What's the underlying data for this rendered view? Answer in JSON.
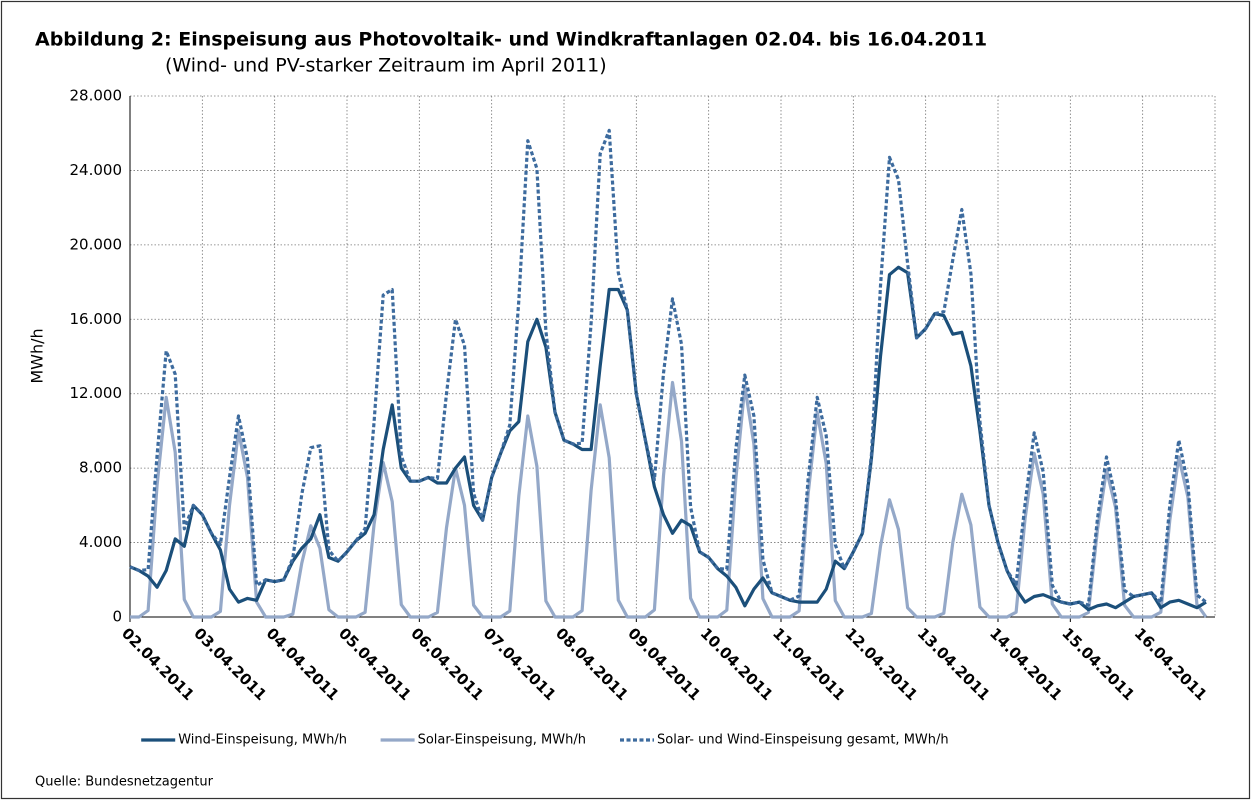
{
  "chart_data": {
    "type": "line",
    "title": "Abbildung 2: Einspeisung aus Photovoltaik- und Windkraftanlagen 02.04. bis 16.04.2011",
    "subtitle": "(Wind- und PV-starker Zeitraum im April 2011)",
    "y_label": "MWh/h",
    "source": "Quelle: Bundesnetzagentur",
    "grid": true,
    "legend": "bottom",
    "xlim": [
      0,
      15
    ],
    "ylim": [
      0,
      28000
    ],
    "yticks": [
      0,
      {
        "value": 4000,
        "label": "4.000"
      },
      {
        "value": 8000,
        "label": "8.000"
      },
      {
        "value": 12000,
        "label": "12.000"
      },
      {
        "value": 16000,
        "label": "16.000"
      },
      {
        "value": 20000,
        "label": "20.000"
      },
      {
        "value": 24000,
        "label": "24.000"
      },
      {
        "value": 28000,
        "label": "28.000"
      }
    ],
    "xticks": [
      {
        "value": 0,
        "label": "02.04.2011"
      },
      {
        "value": 1,
        "label": "03.04.2011"
      },
      {
        "value": 2,
        "label": "04.04.2011"
      },
      {
        "value": 3,
        "label": "05.04.2011"
      },
      {
        "value": 4,
        "label": "06.04.2011"
      },
      {
        "value": 5,
        "label": "07.04.2011"
      },
      {
        "value": 6,
        "label": "08.04.2011"
      },
      {
        "value": 7,
        "label": "09.04.2011"
      },
      {
        "value": 8,
        "label": "10.04.2011"
      },
      {
        "value": 9,
        "label": "11.04.2011"
      },
      {
        "value": 10,
        "label": "12.04.2011"
      },
      {
        "value": 11,
        "label": "13.04.2011"
      },
      {
        "value": 12,
        "label": "14.04.2011"
      },
      {
        "value": 13,
        "label": "15.04.2011"
      },
      {
        "value": 14,
        "label": "16.04.2011"
      }
    ],
    "x": [
      0,
      0.125,
      0.25,
      0.375,
      0.5,
      0.625,
      0.75,
      0.875,
      1,
      1.125,
      1.25,
      1.375,
      1.5,
      1.625,
      1.75,
      1.875,
      2,
      2.125,
      2.25,
      2.375,
      2.5,
      2.625,
      2.75,
      2.875,
      3,
      3.125,
      3.25,
      3.375,
      3.5,
      3.625,
      3.75,
      3.875,
      4,
      4.125,
      4.25,
      4.375,
      4.5,
      4.625,
      4.75,
      4.875,
      5,
      5.125,
      5.25,
      5.375,
      5.5,
      5.625,
      5.75,
      5.875,
      6,
      6.125,
      6.25,
      6.375,
      6.5,
      6.625,
      6.75,
      6.875,
      7,
      7.125,
      7.25,
      7.375,
      7.5,
      7.625,
      7.75,
      7.875,
      8,
      8.125,
      8.25,
      8.375,
      8.5,
      8.625,
      8.75,
      8.875,
      9,
      9.125,
      9.25,
      9.375,
      9.5,
      9.625,
      9.75,
      9.875,
      10,
      10.125,
      10.25,
      10.375,
      10.5,
      10.625,
      10.75,
      10.875,
      11,
      11.125,
      11.25,
      11.375,
      11.5,
      11.625,
      11.75,
      11.875,
      12,
      12.125,
      12.25,
      12.375,
      12.5,
      12.625,
      12.75,
      12.875,
      13,
      13.125,
      13.25,
      13.375,
      13.5,
      13.625,
      13.75,
      13.875,
      14,
      14.125,
      14.25,
      14.375,
      14.5,
      14.625,
      14.75,
      14.875
    ],
    "series": [
      {
        "name": "Wind-Einspeisung, MWh/h",
        "color": "#1b4f7a",
        "style": "solid",
        "values": [
          2700,
          2500,
          2200,
          1600,
          2500,
          4200,
          3800,
          6000,
          5500,
          4500,
          3600,
          1500,
          800,
          1000,
          900,
          2000,
          1900,
          2000,
          3000,
          3700,
          4200,
          5500,
          3200,
          3000,
          3500,
          4100,
          4500,
          5500,
          9000,
          11400,
          8000,
          7300,
          7300,
          7500,
          7200,
          7200,
          8000,
          8600,
          6000,
          5200,
          7500,
          8800,
          10000,
          10500,
          14800,
          16000,
          14500,
          11000,
          9500,
          9300,
          9000,
          9000,
          13500,
          17600,
          17600,
          16500,
          12000,
          9500,
          7000,
          5500,
          4500,
          5200,
          4900,
          3500,
          3200,
          2600,
          2200,
          1600,
          600,
          1500,
          2100,
          1300,
          1100,
          900,
          800,
          800,
          800,
          1500,
          3000,
          2600,
          3500,
          4500,
          8500,
          14000,
          18400,
          18800,
          18500,
          15000,
          15500,
          16300,
          16200,
          15200,
          15300,
          13500,
          10000,
          6000,
          4000,
          2500,
          1500,
          800,
          1100,
          1200,
          1000,
          800,
          700,
          800,
          400,
          600,
          700,
          500,
          800,
          1100,
          1200,
          1300,
          500,
          800,
          900,
          700,
          500,
          800
        ]
      },
      {
        "name": "Solar-Einspeisung, MWh/h",
        "color": "#94a8c8",
        "style": "solid",
        "values": [
          0,
          0,
          350,
          7100,
          11800,
          8850,
          940,
          0,
          0,
          0,
          300,
          6000,
          10000,
          7500,
          800,
          0,
          0,
          0,
          150,
          2900,
          4900,
          3700,
          390,
          0,
          0,
          0,
          250,
          5000,
          8300,
          6200,
          660,
          0,
          0,
          0,
          240,
          4800,
          8000,
          6000,
          640,
          0,
          0,
          0,
          320,
          6500,
          10800,
          8100,
          860,
          0,
          0,
          0,
          340,
          6800,
          11400,
          8550,
          910,
          0,
          0,
          0,
          380,
          7600,
          12600,
          9450,
          1010,
          0,
          0,
          0,
          370,
          7400,
          12400,
          9300,
          990,
          0,
          0,
          0,
          330,
          6600,
          11000,
          8250,
          880,
          0,
          0,
          0,
          190,
          3800,
          6300,
          4700,
          500,
          0,
          0,
          0,
          200,
          4000,
          6600,
          4950,
          530,
          0,
          0,
          0,
          260,
          5300,
          8800,
          6600,
          700,
          0,
          0,
          0,
          240,
          4700,
          7900,
          5900,
          630,
          0,
          0,
          0,
          260,
          5200,
          8600,
          6450,
          690,
          0
        ]
      },
      {
        "name": "Solar- und Wind-Einspeisung gesamt, MWh/h",
        "color": "#3d6b9e",
        "style": "dashed",
        "values": [
          2700,
          2500,
          2550,
          8700,
          14300,
          13050,
          4740,
          6000,
          5500,
          4500,
          3900,
          7500,
          10800,
          8500,
          1700,
          2000,
          1900,
          2000,
          3150,
          6600,
          9100,
          9200,
          3590,
          3000,
          3500,
          4100,
          4750,
          10500,
          17300,
          17600,
          8660,
          7300,
          7300,
          7500,
          7440,
          12000,
          16000,
          14600,
          6640,
          5200,
          7500,
          8800,
          10320,
          17000,
          25600,
          24100,
          15360,
          11000,
          9500,
          9300,
          9340,
          15800,
          24900,
          26150,
          18510,
          16500,
          12000,
          9500,
          7380,
          13100,
          17100,
          14650,
          5910,
          3500,
          3200,
          2600,
          2570,
          9000,
          13000,
          10800,
          3090,
          1300,
          1100,
          900,
          1130,
          7400,
          11800,
          9750,
          3880,
          2600,
          3500,
          4500,
          8690,
          17800,
          24700,
          23500,
          19000,
          15000,
          15500,
          16300,
          16400,
          19200,
          21900,
          18450,
          10530,
          6000,
          4000,
          2500,
          1760,
          6100,
          9900,
          7800,
          1700,
          800,
          700,
          800,
          640,
          5300,
          8600,
          6400,
          1430,
          1100,
          1200,
          1300,
          760,
          6000,
          9500,
          7150,
          1190,
          800
        ]
      }
    ]
  }
}
